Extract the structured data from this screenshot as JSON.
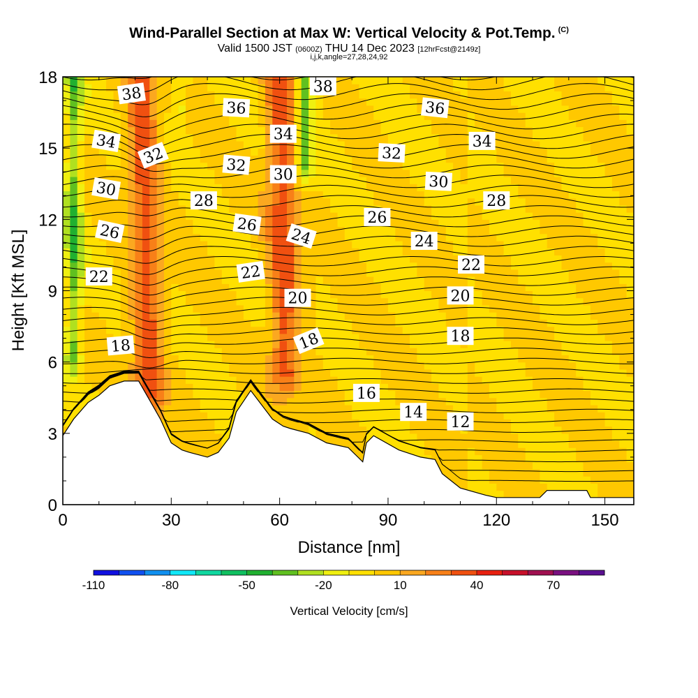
{
  "header": {
    "title_main": "Wind-Parallel Section at Max W: Vertical Velocity & Pot.Temp.",
    "title_copyright": "(C)",
    "subtitle_valid": "Valid 1500 JST",
    "subtitle_z": "(0600Z)",
    "subtitle_date": "THU 14 Dec 2023",
    "subtitle_fcst": "[12hrFcst@2149z]",
    "subtitle_indices": "i,j,k,angle=27,28,24,92"
  },
  "chart_data": {
    "type": "heatmap",
    "xlabel": "Distance [nm]",
    "ylabel": "Height [Kft MSL]",
    "xlim": [
      0,
      158
    ],
    "ylim": [
      0,
      18
    ],
    "x_ticks": [
      0,
      30,
      60,
      90,
      120,
      150
    ],
    "y_ticks": [
      0,
      3,
      6,
      9,
      12,
      15,
      18
    ],
    "colorbar": {
      "label": "Vertical Velocity [cm/s]",
      "tick_labels": [
        -110,
        -80,
        -50,
        -20,
        10,
        40,
        70
      ],
      "colors": [
        "#1010e0",
        "#1050f0",
        "#1090f0",
        "#10e8f8",
        "#10d8a0",
        "#10c060",
        "#20b030",
        "#60c020",
        "#b0e020",
        "#f0f010",
        "#ffe000",
        "#ffc800",
        "#fba820",
        "#f88018",
        "#f05010",
        "#e82010",
        "#c8102a",
        "#a01050",
        "#7a1080",
        "#5a1090"
      ]
    },
    "background_value_range": [
      -10,
      10
    ],
    "updraft_bands": [
      {
        "x_center": 24,
        "y_from": 3.5,
        "y_to": 18,
        "max": 40
      },
      {
        "x_center": 62,
        "y_from": 4.5,
        "y_to": 18,
        "max": 40
      }
    ],
    "downdraft_bands": [
      {
        "x_center": 3,
        "y_from": 5,
        "y_to": 18,
        "min": -40
      },
      {
        "x_center": 67,
        "y_from": 13,
        "y_to": 18,
        "min": -40
      },
      {
        "x_center": 33,
        "y_from": 15.5,
        "y_to": 18,
        "min": -20
      }
    ],
    "terrain_kft": [
      [
        0,
        2.9
      ],
      [
        3,
        3.6
      ],
      [
        7,
        4.3
      ],
      [
        10,
        4.6
      ],
      [
        13,
        5.0
      ],
      [
        17,
        5.2
      ],
      [
        21,
        5.2
      ],
      [
        24,
        4.4
      ],
      [
        27,
        3.6
      ],
      [
        30,
        2.6
      ],
      [
        33,
        2.3
      ],
      [
        35,
        2.2
      ],
      [
        40,
        2.0
      ],
      [
        43,
        2.2
      ],
      [
        46,
        2.8
      ],
      [
        48,
        3.9
      ],
      [
        52,
        4.8
      ],
      [
        58,
        3.6
      ],
      [
        61,
        3.3
      ],
      [
        63,
        3.2
      ],
      [
        68,
        3.0
      ],
      [
        73,
        2.6
      ],
      [
        79,
        2.4
      ],
      [
        83,
        1.8
      ],
      [
        84,
        2.6
      ],
      [
        86,
        2.9
      ],
      [
        93,
        2.3
      ],
      [
        99,
        2.0
      ],
      [
        103,
        1.9
      ],
      [
        105,
        1.3
      ],
      [
        110,
        0.7
      ],
      [
        117,
        0.4
      ],
      [
        120,
        0.3
      ],
      [
        132,
        0.3
      ],
      [
        134,
        0.6
      ],
      [
        145,
        0.6
      ],
      [
        146,
        0.3
      ],
      [
        158,
        0.3
      ]
    ],
    "isentrope_labels": [
      {
        "text": "38",
        "x": 19,
        "y": 17.3,
        "angle": -8
      },
      {
        "text": "36",
        "x": 48,
        "y": 16.7,
        "angle": 3
      },
      {
        "text": "38",
        "x": 72,
        "y": 17.6,
        "angle": 0
      },
      {
        "text": "36",
        "x": 103,
        "y": 16.7,
        "angle": 6
      },
      {
        "text": "34",
        "x": 12,
        "y": 15.3,
        "angle": 10
      },
      {
        "text": "32",
        "x": 25,
        "y": 14.7,
        "angle": -22
      },
      {
        "text": "34",
        "x": 61,
        "y": 15.6,
        "angle": 0
      },
      {
        "text": "34",
        "x": 116,
        "y": 15.3,
        "angle": 0
      },
      {
        "text": "32",
        "x": 48,
        "y": 14.3,
        "angle": 5
      },
      {
        "text": "32",
        "x": 91,
        "y": 14.8,
        "angle": 3
      },
      {
        "text": "30",
        "x": 12,
        "y": 13.3,
        "angle": 10
      },
      {
        "text": "30",
        "x": 61,
        "y": 13.9,
        "angle": 0
      },
      {
        "text": "30",
        "x": 104,
        "y": 13.6,
        "angle": 3
      },
      {
        "text": "28",
        "x": 39,
        "y": 12.8,
        "angle": 0
      },
      {
        "text": "28",
        "x": 120,
        "y": 12.8,
        "angle": 0
      },
      {
        "text": "26",
        "x": 13,
        "y": 11.5,
        "angle": 12
      },
      {
        "text": "26",
        "x": 51,
        "y": 11.8,
        "angle": 8
      },
      {
        "text": "26",
        "x": 87,
        "y": 12.1,
        "angle": 0
      },
      {
        "text": "24",
        "x": 66,
        "y": 11.3,
        "angle": 18
      },
      {
        "text": "24",
        "x": 100,
        "y": 11.1,
        "angle": 0
      },
      {
        "text": "22",
        "x": 10,
        "y": 9.6,
        "angle": 0
      },
      {
        "text": "22",
        "x": 52,
        "y": 9.8,
        "angle": -8
      },
      {
        "text": "22",
        "x": 113,
        "y": 10.1,
        "angle": 0
      },
      {
        "text": "20",
        "x": 65,
        "y": 8.7,
        "angle": 0
      },
      {
        "text": "20",
        "x": 110,
        "y": 8.8,
        "angle": 0
      },
      {
        "text": "18",
        "x": 16,
        "y": 6.7,
        "angle": -5
      },
      {
        "text": "18",
        "x": 68,
        "y": 6.9,
        "angle": -22
      },
      {
        "text": "18",
        "x": 110,
        "y": 7.1,
        "angle": 0
      },
      {
        "text": "16",
        "x": 84,
        "y": 4.7,
        "angle": 0
      },
      {
        "text": "14",
        "x": 97,
        "y": 3.9,
        "angle": 0
      },
      {
        "text": "12",
        "x": 110,
        "y": 3.5,
        "angle": 0
      }
    ]
  }
}
